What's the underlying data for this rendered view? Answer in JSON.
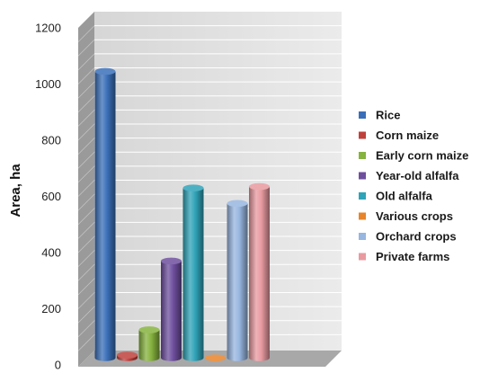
{
  "chart_data": {
    "type": "bar",
    "title": "",
    "xlabel": "",
    "ylabel": "Area, ha",
    "ylim": [
      0,
      1200
    ],
    "yticks": [
      0,
      200,
      400,
      600,
      800,
      1000,
      1200
    ],
    "grid": true,
    "legend_position": "right",
    "style": "3d-cylinder",
    "series": [
      {
        "name": "Rice",
        "value": 1045,
        "color": "#3a6fb8"
      },
      {
        "name": "Corn maize",
        "value": 35,
        "color": "#c0403c"
      },
      {
        "name": "Early corn maize",
        "value": 125,
        "color": "#86b23e"
      },
      {
        "name": "Year-old alfalfa",
        "value": 370,
        "color": "#6e4f9e"
      },
      {
        "name": "Old alfalfa",
        "value": 630,
        "color": "#2fa3b8"
      },
      {
        "name": "Various crops",
        "value": 25,
        "color": "#e8842a"
      },
      {
        "name": "Orchard crops",
        "value": 575,
        "color": "#97b6e0"
      },
      {
        "name": "Private farms",
        "value": 635,
        "color": "#e89aa0"
      }
    ]
  }
}
